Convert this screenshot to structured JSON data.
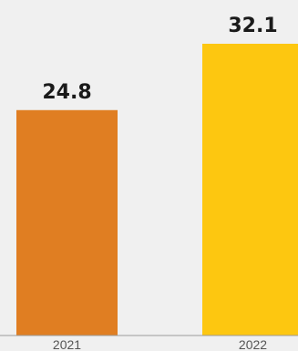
{
  "chart_data": {
    "type": "bar",
    "categories": [
      "2021",
      "2022"
    ],
    "values": [
      24.8,
      32.1
    ],
    "value_labels": [
      "24.8",
      "32.1"
    ],
    "title": "",
    "xlabel": "",
    "ylabel": "",
    "ylim": [
      0,
      34
    ],
    "grid": false,
    "legend": "none"
  },
  "colors": {
    "background": "#f0f0f0",
    "bars": [
      "#e07e22",
      "#fdc710"
    ],
    "baseline": "#9a9a9a",
    "value_label": "#1a1a1a",
    "tick_label": "#555555"
  }
}
